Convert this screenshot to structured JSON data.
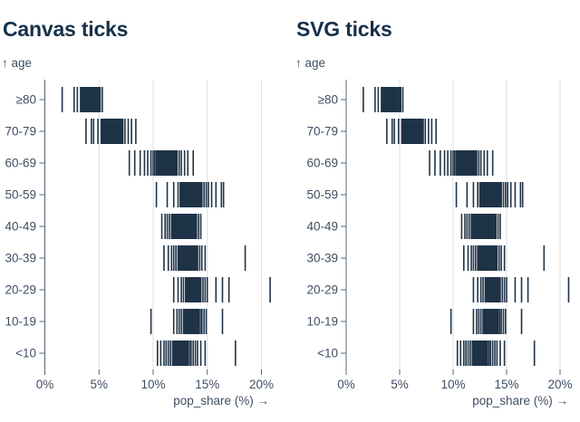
{
  "panels": [
    {
      "id": "canvas-ticks",
      "title": "Canvas ticks"
    },
    {
      "id": "svg-ticks",
      "title": "SVG ticks"
    }
  ],
  "axes": {
    "y_title": "↑ age",
    "x_title": "pop_share (%) →",
    "x_tick_labels": [
      "0%",
      "5%",
      "10%",
      "15%",
      "20%"
    ]
  },
  "colors": {
    "tick": "#1f3347",
    "title": "#16304a",
    "axis_text": "#3f4e63",
    "axis_line": "#5a6775",
    "grid": "#dcdfe3"
  },
  "chart_data": {
    "type": "scatter",
    "variant": "tick-strip: one short vertical tick per observation, same data rendered in both panels",
    "title": "Canvas ticks / SVG ticks",
    "xlabel": "pop_share (%) →",
    "ylabel": "age",
    "xlim": [
      0,
      21
    ],
    "x_ticks": [
      0,
      5,
      10,
      15,
      20
    ],
    "grid": true,
    "categories": [
      "≥80",
      "70-79",
      "60-69",
      "50-59",
      "40-49",
      "30-39",
      "20-29",
      "10-19",
      "<10"
    ],
    "series": [
      {
        "age": "≥80",
        "values": [
          1.6,
          2.7,
          3.0,
          3.3,
          3.4,
          3.5,
          3.55,
          3.6,
          3.7,
          3.75,
          3.8,
          3.85,
          3.9,
          3.95,
          4.0,
          4.05,
          4.1,
          4.15,
          4.2,
          4.25,
          4.3,
          4.35,
          4.4,
          4.45,
          4.5,
          4.55,
          4.6,
          4.65,
          4.7,
          4.8,
          4.9,
          5.0,
          5.1,
          5.3
        ]
      },
      {
        "age": "70-79",
        "values": [
          3.8,
          4.3,
          4.5,
          4.9,
          5.2,
          5.3,
          5.4,
          5.5,
          5.6,
          5.65,
          5.7,
          5.75,
          5.8,
          5.85,
          5.9,
          5.95,
          6.0,
          6.05,
          6.1,
          6.15,
          6.2,
          6.3,
          6.4,
          6.5,
          6.6,
          6.7,
          6.8,
          6.9,
          7.0,
          7.1,
          7.2,
          7.4,
          7.7,
          8.0,
          8.4
        ]
      },
      {
        "age": "60-69",
        "values": [
          7.8,
          8.3,
          8.8,
          9.2,
          9.5,
          9.8,
          10.0,
          10.15,
          10.3,
          10.4,
          10.5,
          10.6,
          10.7,
          10.75,
          10.8,
          10.9,
          10.95,
          11.0,
          11.1,
          11.15,
          11.2,
          11.3,
          11.4,
          11.5,
          11.6,
          11.7,
          11.8,
          11.9,
          12.0,
          12.1,
          12.2,
          12.4,
          12.6,
          12.9,
          13.2,
          13.7
        ]
      },
      {
        "age": "50-59",
        "values": [
          10.3,
          11.3,
          11.9,
          12.3,
          12.5,
          12.6,
          12.7,
          12.8,
          12.9,
          13.0,
          13.1,
          13.15,
          13.2,
          13.3,
          13.35,
          13.4,
          13.5,
          13.55,
          13.6,
          13.7,
          13.75,
          13.8,
          13.9,
          14.0,
          14.1,
          14.2,
          14.3,
          14.4,
          14.5,
          14.7,
          14.9,
          15.1,
          15.4,
          15.8,
          16.3,
          16.5
        ]
      },
      {
        "age": "40-49",
        "values": [
          10.8,
          11.1,
          11.3,
          11.5,
          11.7,
          11.8,
          11.9,
          12.0,
          12.1,
          12.2,
          12.3,
          12.4,
          12.5,
          12.55,
          12.6,
          12.7,
          12.75,
          12.8,
          12.9,
          12.95,
          13.0,
          13.1,
          13.2,
          13.3,
          13.4,
          13.5,
          13.6,
          13.7,
          13.8,
          13.9,
          14.0,
          14.2,
          14.4
        ]
      },
      {
        "age": "30-39",
        "values": [
          11.0,
          11.4,
          11.7,
          11.9,
          12.1,
          12.3,
          12.4,
          12.5,
          12.6,
          12.7,
          12.8,
          12.85,
          12.9,
          13.0,
          13.05,
          13.1,
          13.2,
          13.3,
          13.4,
          13.5,
          13.6,
          13.7,
          13.8,
          13.9,
          14.0,
          14.1,
          14.3,
          14.5,
          14.8,
          18.5
        ]
      },
      {
        "age": "20-29",
        "values": [
          11.9,
          12.3,
          12.6,
          12.8,
          13.0,
          13.1,
          13.2,
          13.3,
          13.4,
          13.45,
          13.5,
          13.6,
          13.65,
          13.7,
          13.8,
          13.85,
          13.9,
          14.0,
          14.1,
          14.2,
          14.3,
          14.4,
          14.6,
          14.8,
          15.0,
          15.8,
          16.4,
          17.0,
          20.8
        ]
      },
      {
        "age": "10-19",
        "values": [
          9.8,
          11.9,
          12.2,
          12.4,
          12.6,
          12.8,
          12.9,
          13.0,
          13.1,
          13.2,
          13.3,
          13.35,
          13.4,
          13.5,
          13.55,
          13.6,
          13.7,
          13.8,
          13.9,
          14.0,
          14.1,
          14.2,
          14.35,
          14.5,
          14.7,
          14.9,
          16.4
        ]
      },
      {
        "age": "<10",
        "values": [
          10.4,
          10.7,
          11.0,
          11.2,
          11.4,
          11.6,
          11.8,
          11.9,
          12.0,
          12.1,
          12.2,
          12.3,
          12.4,
          12.5,
          12.6,
          12.7,
          12.8,
          12.9,
          13.0,
          13.1,
          13.2,
          13.35,
          13.5,
          13.7,
          13.9,
          14.1,
          14.4,
          14.8,
          17.6
        ]
      }
    ]
  }
}
